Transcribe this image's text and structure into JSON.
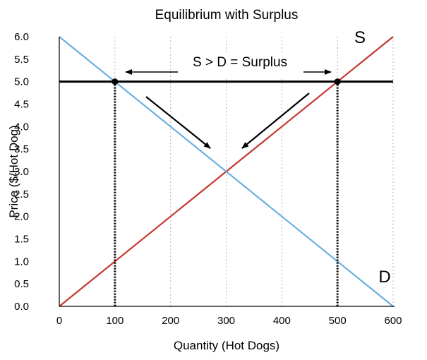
{
  "chart_data": {
    "type": "line",
    "title": "Equilibrium with Surplus",
    "xlabel": "Quantity (Hot Dogs)",
    "ylabel": "Price ($/Hot Dog)",
    "xlim": [
      0,
      600
    ],
    "ylim": [
      0,
      6
    ],
    "x_ticks": [
      "0",
      "100",
      "200",
      "300",
      "400",
      "500",
      "600"
    ],
    "y_ticks": [
      "0.0",
      "0.5",
      "1.0",
      "1.5",
      "2.0",
      "2.5",
      "3.0",
      "3.5",
      "4.0",
      "4.5",
      "5.0",
      "5.5",
      "6.0"
    ],
    "grid": "vertical-dotted",
    "series": [
      {
        "name": "S",
        "color": "#c8372d",
        "x": [
          0,
          600
        ],
        "y": [
          0,
          6
        ]
      },
      {
        "name": "D",
        "color": "#6ab1de",
        "x": [
          0,
          600
        ],
        "y": [
          6,
          0
        ]
      }
    ],
    "price_floor": {
      "y": 5.0,
      "color": "#000000"
    },
    "points": [
      {
        "x": 100,
        "y": 5.0
      },
      {
        "x": 500,
        "y": 5.0
      }
    ],
    "annotations": {
      "surplus_label": "S > D = Surplus",
      "supply_label": "S",
      "demand_label": "D"
    }
  }
}
